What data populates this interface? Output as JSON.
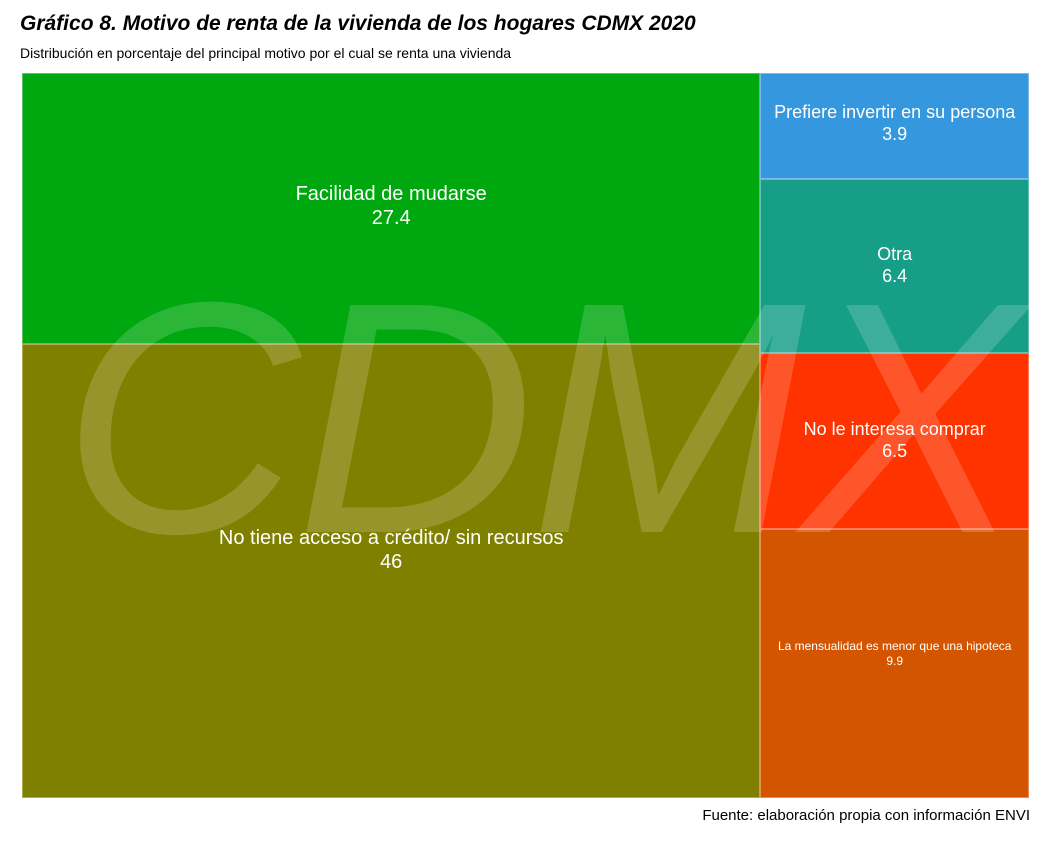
{
  "chart_data": {
    "type": "treemap",
    "title": "Gráfico 8. Motivo de renta de la vivienda de los hogares CDMX 2020",
    "subtitle": "Distribución en porcentaje del principal motivo por el cual se renta una vivienda",
    "caption": "Fuente: elaboración propia con información ENVI",
    "watermark": "CDMX",
    "unit": "%",
    "items": [
      {
        "label": "No tiene acceso a crédito/ sin recursos",
        "value": 46,
        "display": "46",
        "color": "#808000"
      },
      {
        "label": "Facilidad de mudarse",
        "value": 27.4,
        "display": "27.4",
        "color": "#00A80F"
      },
      {
        "label": "La mensualidad es menor que una hipoteca",
        "value": 9.9,
        "display": "9.9",
        "color": "#D45500"
      },
      {
        "label": "No le interesa comprar",
        "value": 6.5,
        "display": "6.5",
        "color": "#FF3300"
      },
      {
        "label": "Otra",
        "value": 6.4,
        "display": "6.4",
        "color": "#169E86"
      },
      {
        "label": "Prefiere invertir en su persona",
        "value": 3.9,
        "display": "3.9",
        "color": "#3597DD"
      }
    ]
  }
}
